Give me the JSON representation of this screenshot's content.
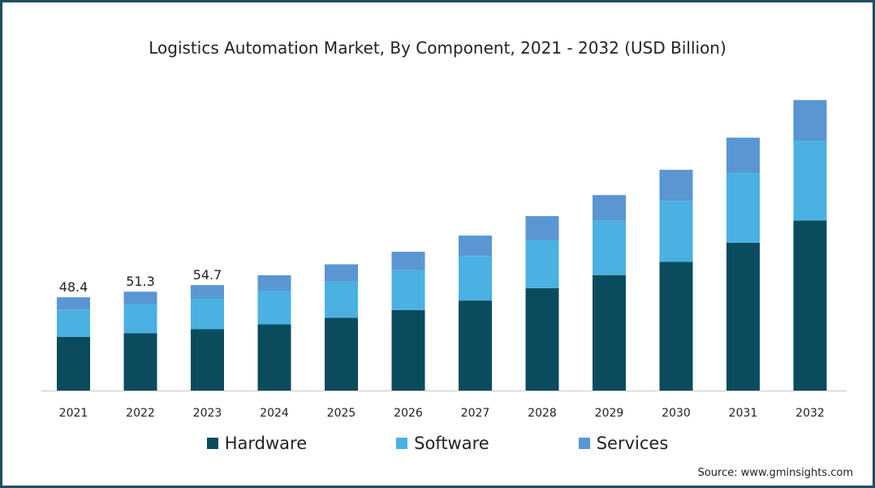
{
  "chart_data": {
    "type": "bar",
    "stacked": true,
    "title": "Logistics Automation Market, By Component, 2021 - 2032 (USD Billion)",
    "xlabel": "",
    "ylabel": "",
    "categories": [
      "2021",
      "2022",
      "2023",
      "2024",
      "2025",
      "2026",
      "2027",
      "2028",
      "2029",
      "2030",
      "2031",
      "2032"
    ],
    "series": [
      {
        "name": "Hardware",
        "color": "#0b4b5e",
        "values": [
          27.9,
          29.8,
          31.8,
          34.4,
          37.7,
          41.8,
          46.7,
          53.1,
          59.9,
          66.8,
          76.7,
          88.2
        ]
      },
      {
        "name": "Software",
        "color": "#4bb0e2",
        "values": [
          14.1,
          14.9,
          16.0,
          17.4,
          18.9,
          20.7,
          23.1,
          24.8,
          28.3,
          31.7,
          36.4,
          41.5
        ]
      },
      {
        "name": "Services",
        "color": "#5996d2",
        "values": [
          6.4,
          6.6,
          6.9,
          8.0,
          8.9,
          9.5,
          10.6,
          12.6,
          13.2,
          16.0,
          18.1,
          21.0
        ]
      }
    ],
    "totals": [
      48.4,
      51.3,
      54.7,
      null,
      null,
      null,
      null,
      null,
      null,
      null,
      null,
      null
    ],
    "ylim": [
      0,
      155
    ],
    "grid": false,
    "legend": "bottom"
  },
  "source": "Source: www.gminsights.com"
}
